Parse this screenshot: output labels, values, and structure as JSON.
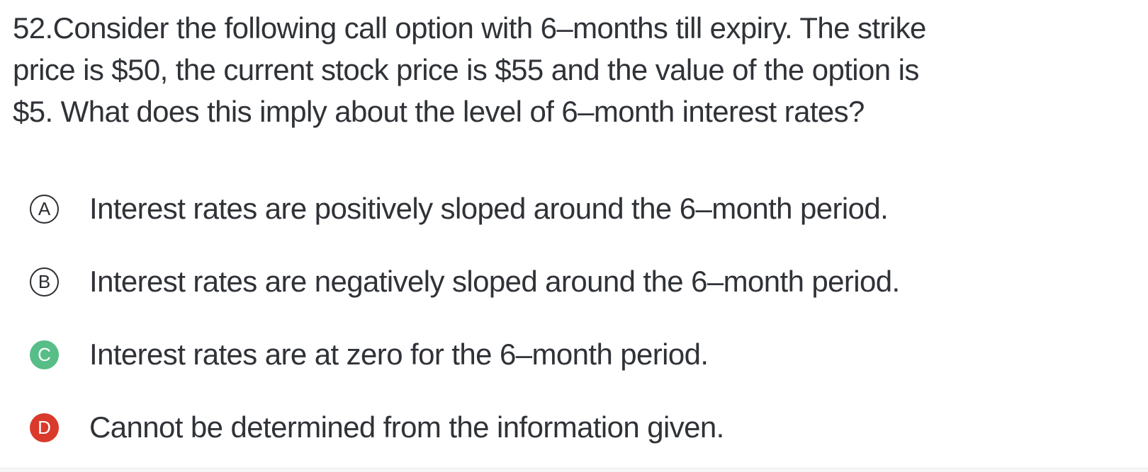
{
  "question": {
    "number": "52",
    "lines": [
      "52.Consider the following call option with 6–months till expiry. The strike",
      "price is $50, the current stock price is $55 and the value of the option is",
      "$5. What does this imply about the level of 6–month interest rates?"
    ]
  },
  "options": [
    {
      "letter": "A",
      "text": "Interest rates are positively sloped around the 6–month period.",
      "state": "default"
    },
    {
      "letter": "B",
      "text": "Interest rates are negatively sloped around the 6–month period.",
      "state": "default"
    },
    {
      "letter": "C",
      "text": "Interest rates are at zero for the 6–month period.",
      "state": "highlighted-green"
    },
    {
      "letter": "D",
      "text": "Cannot be determined from the information given.",
      "state": "highlighted-red"
    }
  ],
  "colors": {
    "text": "#2f3237",
    "badge-outline": "#2b2e32",
    "correct-green": "#57be88",
    "incorrect-red": "#d93a2b",
    "footer-band": "#f6f6f7",
    "footer-border": "#ececee",
    "background": "#ffffff"
  }
}
